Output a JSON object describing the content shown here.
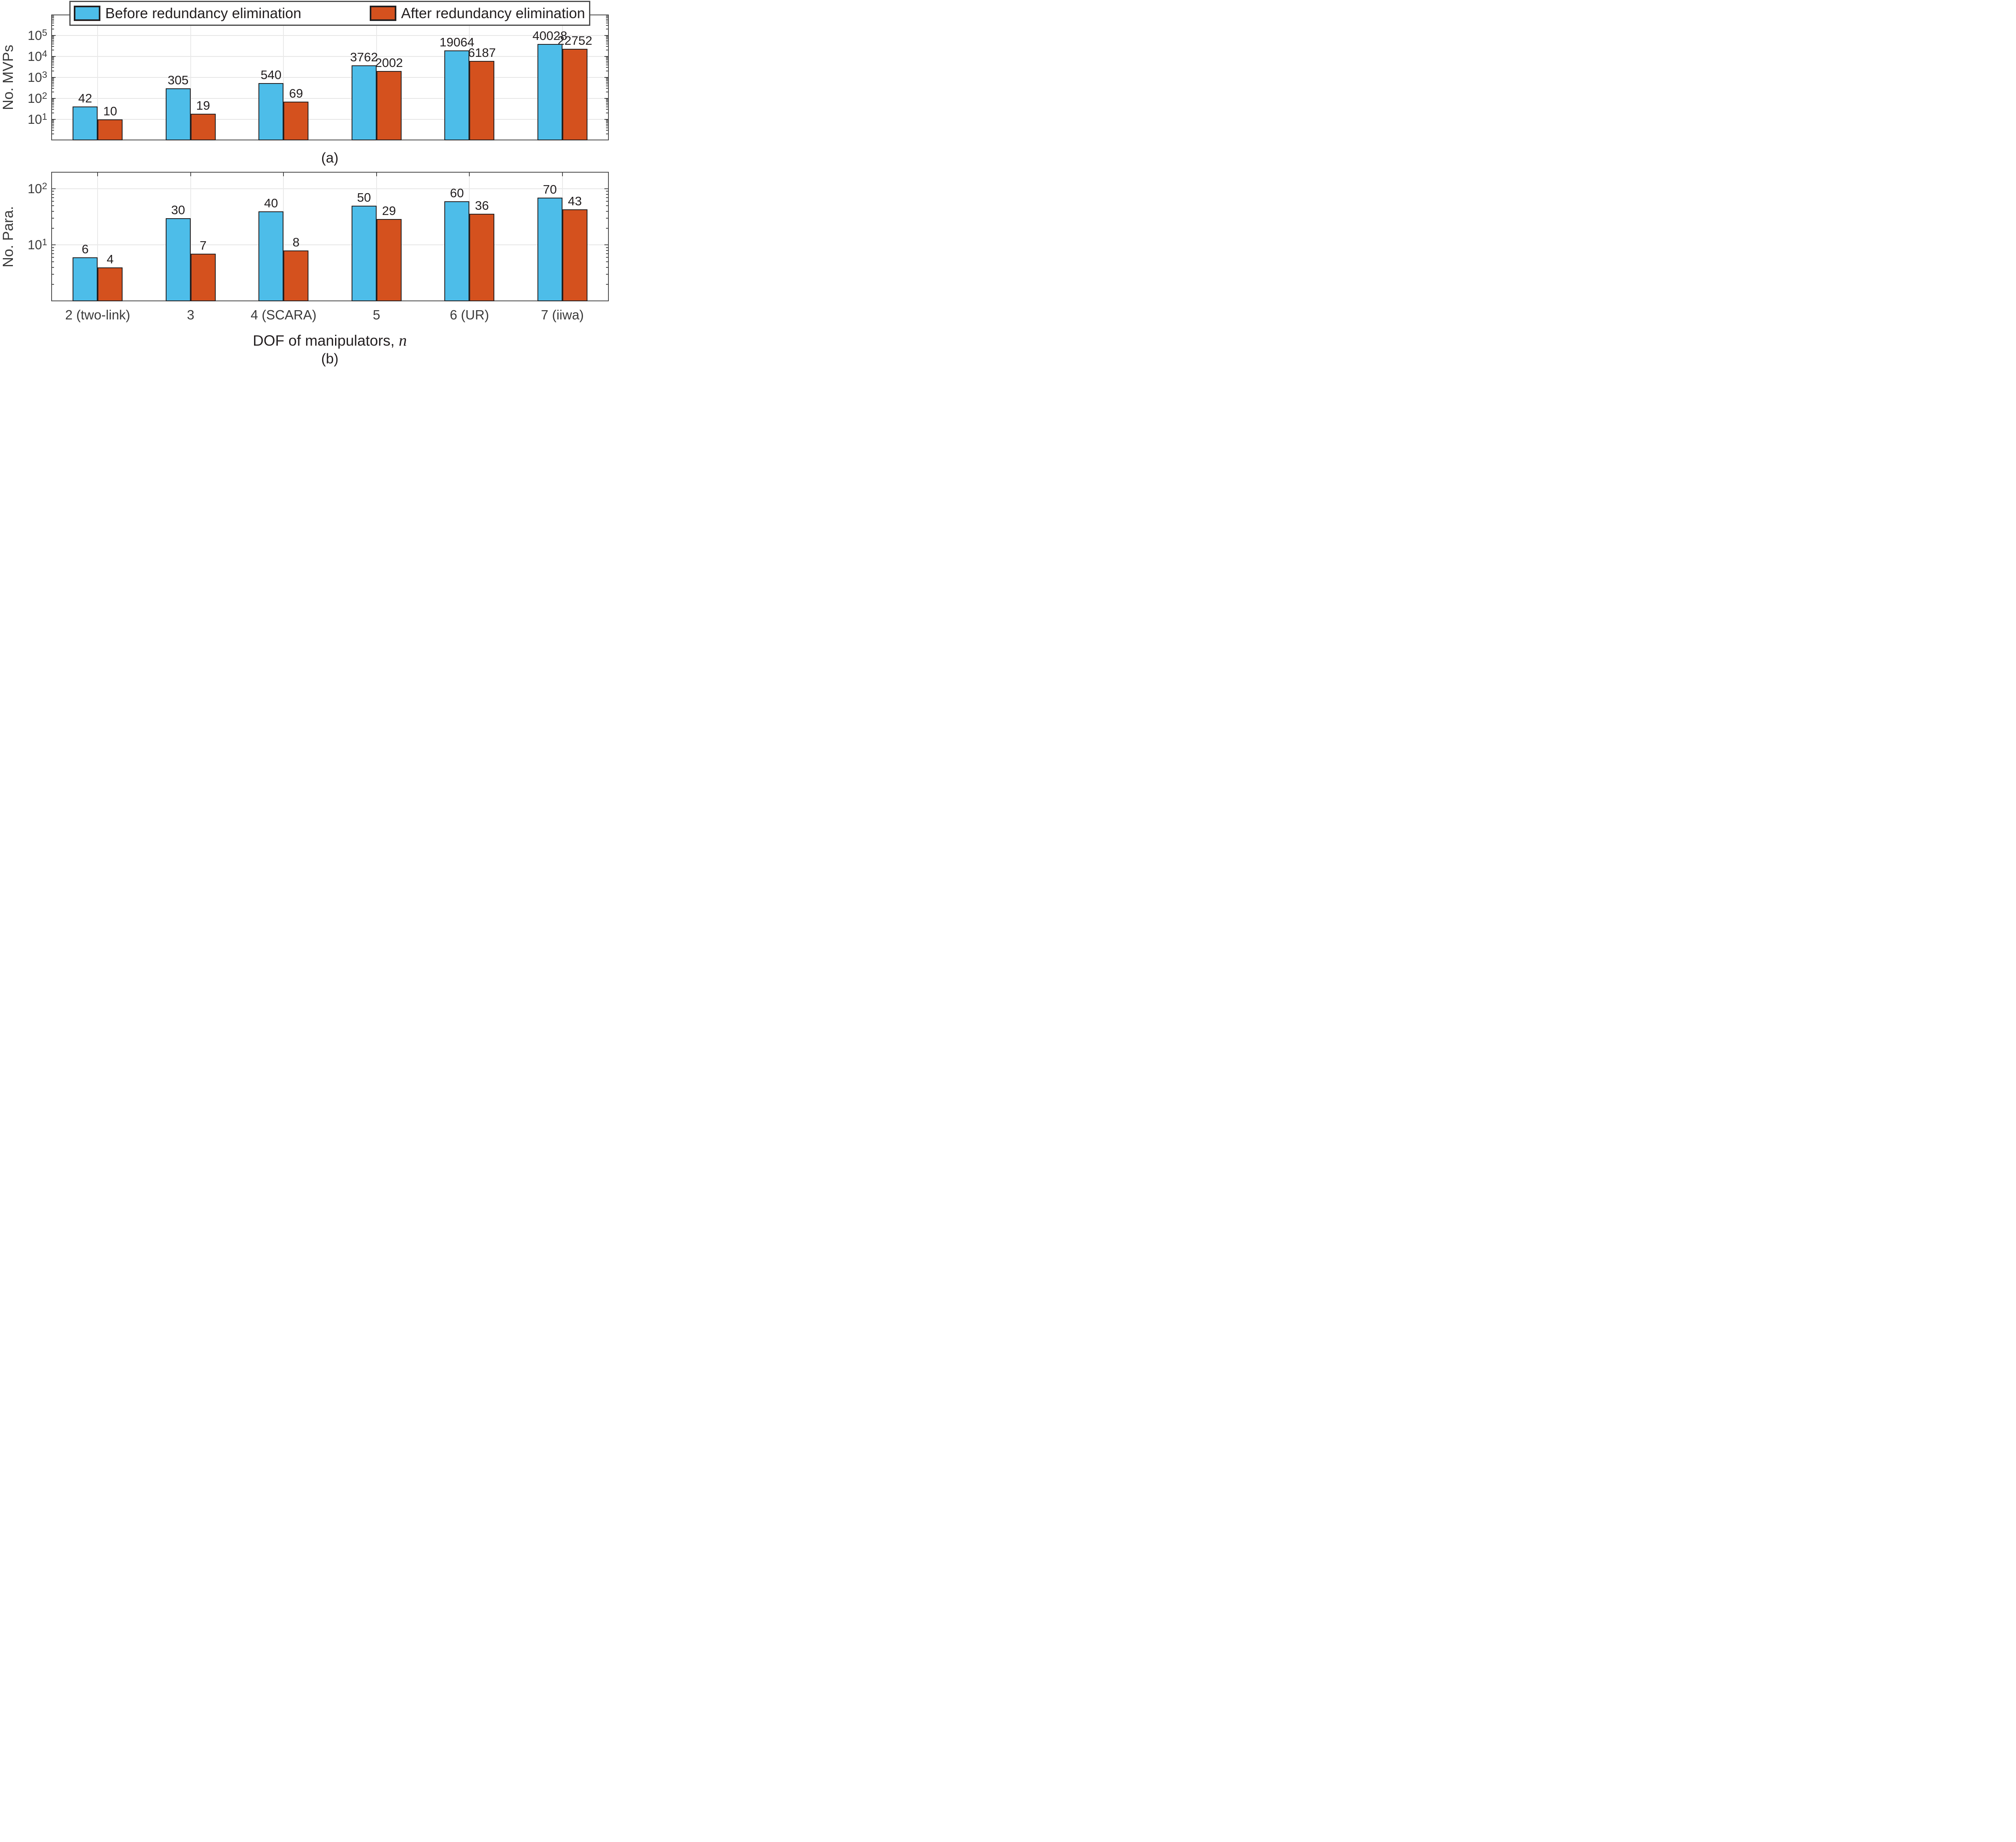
{
  "figure": {
    "background": "#ffffff",
    "colors": {
      "before_fill": "#4dbde9",
      "after_fill": "#d4511e",
      "bar_outline": "#231f20",
      "axis": "#4a4a4a",
      "tick_text": "#3b3b3b",
      "gridline": "#e6e6e6",
      "label_text": "#231f20"
    },
    "legend": {
      "items": [
        {
          "label": "Before redundancy elimination",
          "color": "#4dbde9"
        },
        {
          "label": "After redundancy elimination",
          "color": "#d4511e"
        }
      ],
      "position": "top"
    },
    "captions": {
      "a": "(a)",
      "b": "(b)"
    },
    "xlabel": {
      "text": "DOF of manipulators, ",
      "var": "n"
    }
  },
  "chart_data": [
    {
      "type": "bar",
      "subplot": "a",
      "title": "",
      "ylabel": "No. MVPs",
      "xlabel": "",
      "yscale": "log",
      "ylim": [
        1,
        1000000
      ],
      "y_tick_exponents": [
        1,
        2,
        3,
        4,
        5
      ],
      "grid": true,
      "legend_position": "top",
      "categories": [
        "2 (two-link)",
        "3",
        "4 (SCARA)",
        "5",
        "6 (UR)",
        "7 (iiwa)"
      ],
      "series": [
        {
          "name": "Before redundancy elimination",
          "values": [
            42,
            305,
            540,
            3762,
            19064,
            40028
          ]
        },
        {
          "name": "After redundancy elimination",
          "values": [
            10,
            19,
            69,
            2002,
            6187,
            22752
          ]
        }
      ],
      "show_x_tick_labels": false
    },
    {
      "type": "bar",
      "subplot": "b",
      "title": "",
      "ylabel": "No. Para.",
      "xlabel": "DOF of manipulators, n",
      "yscale": "log",
      "ylim": [
        1,
        200
      ],
      "y_tick_exponents": [
        1,
        2
      ],
      "grid": true,
      "categories": [
        "2 (two-link)",
        "3",
        "4 (SCARA)",
        "5",
        "6 (UR)",
        "7 (iiwa)"
      ],
      "series": [
        {
          "name": "Before redundancy elimination",
          "values": [
            6,
            30,
            40,
            50,
            60,
            70
          ]
        },
        {
          "name": "After redundancy elimination",
          "values": [
            4,
            7,
            8,
            29,
            36,
            43
          ]
        }
      ],
      "show_x_tick_labels": true
    }
  ]
}
